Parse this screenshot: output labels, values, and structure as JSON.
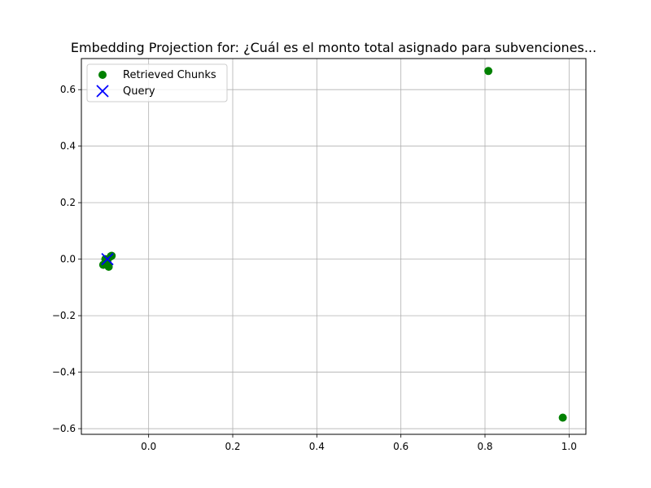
{
  "chart_data": {
    "type": "scatter",
    "title": "Embedding Projection for: ¿Cuál es el monto total asignado para subvenciones...",
    "xlabel": "",
    "ylabel": "",
    "xlim": [
      -0.16,
      1.04
    ],
    "ylim": [
      -0.62,
      0.71
    ],
    "x_ticks": [
      0.0,
      0.2,
      0.4,
      0.6,
      0.8,
      1.0
    ],
    "x_tick_labels": [
      "0.0",
      "0.2",
      "0.4",
      "0.6",
      "0.8",
      "1.0"
    ],
    "y_ticks": [
      -0.6,
      -0.4,
      -0.2,
      0.0,
      0.2,
      0.4,
      0.6
    ],
    "y_tick_labels": [
      "−0.6",
      "−0.4",
      "−0.2",
      "0.0",
      "0.2",
      "0.4",
      "0.6"
    ],
    "grid": true,
    "legend_position": "top-left",
    "series": [
      {
        "name": "Retrieved Chunks",
        "marker": "circle",
        "color": "#008000",
        "points": [
          {
            "x": 0.808,
            "y": 0.666
          },
          {
            "x": 0.985,
            "y": -0.561
          },
          {
            "x": -0.108,
            "y": -0.02
          },
          {
            "x": -0.1,
            "y": -0.015
          },
          {
            "x": -0.095,
            "y": -0.027
          },
          {
            "x": -0.09,
            "y": 0.01
          },
          {
            "x": -0.088,
            "y": 0.012
          },
          {
            "x": -0.103,
            "y": 0.0
          },
          {
            "x": -0.098,
            "y": -0.005
          }
        ]
      },
      {
        "name": "Query",
        "marker": "x",
        "color": "#0000ff",
        "points": [
          {
            "x": -0.098,
            "y": 0.0
          }
        ]
      }
    ]
  }
}
